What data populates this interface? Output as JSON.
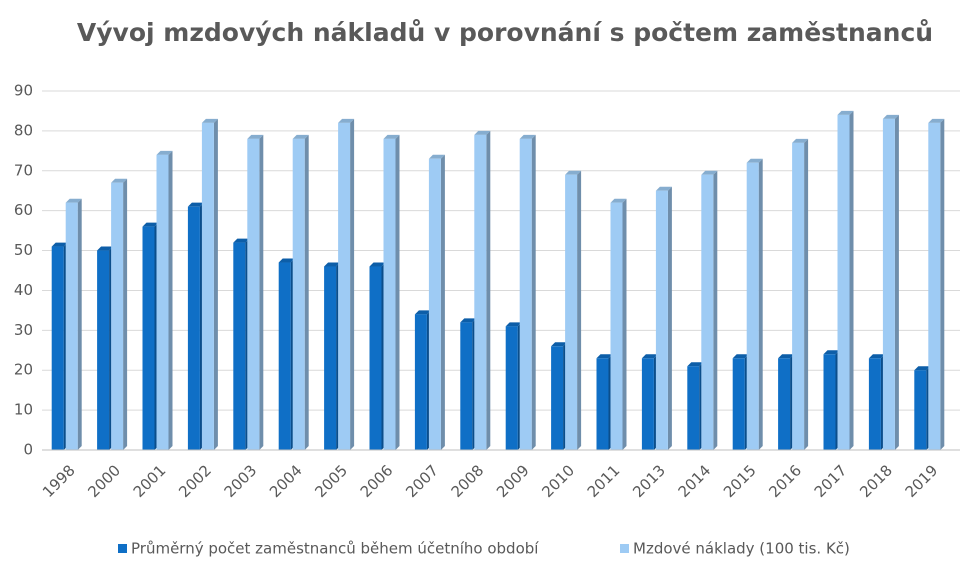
{
  "chart_data": {
    "type": "bar3d",
    "title": "Vývoj mzdových nákladů v porovnání s počtem zaměstnanců",
    "categories": [
      "1998",
      "2000",
      "2001",
      "2002",
      "2003",
      "2004",
      "2005",
      "2006",
      "2007",
      "2008",
      "2009",
      "2010",
      "2011",
      "2013",
      "2014",
      "2015",
      "2016",
      "2017",
      "2018",
      "2019"
    ],
    "series": [
      {
        "name": "Průměrný počet zaměstnanců během účetního období",
        "color": "#0f6fc6",
        "values": [
          51,
          50,
          56,
          61,
          52,
          47,
          46,
          46,
          34,
          32,
          31,
          26,
          23,
          23,
          21,
          23,
          23,
          24,
          23,
          20
        ]
      },
      {
        "name": "Mzdové náklady (100 tis. Kč)",
        "color": "#9ecbf4",
        "values": [
          62,
          67,
          74,
          82,
          78,
          78,
          82,
          78,
          73,
          79,
          78,
          69,
          62,
          65,
          69,
          72,
          77,
          84,
          83,
          82
        ]
      }
    ],
    "ylim": [
      0,
      90
    ],
    "yticks": [
      0,
      10,
      20,
      30,
      40,
      50,
      60,
      70,
      80,
      90
    ],
    "grid": true,
    "legend": "bottom"
  }
}
